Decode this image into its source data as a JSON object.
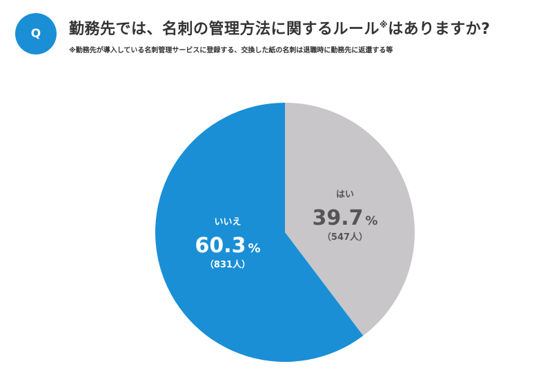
{
  "header": {
    "badge": "Q",
    "title": "勤務先では、名刺の管理方法に関するルール",
    "title_mark": "※",
    "title_suffix": "はありますか?",
    "note": "※勤務先が導入している名刺管理サービスに登録する、交換した紙の名刺は退職時に勤務先に返還する等"
  },
  "colors": {
    "accent": "#1a8fd6",
    "no": "#1a8fd6",
    "yes": "#c8c6c9",
    "label_on_blue": "#ffffff",
    "label_on_gray": "#555555"
  },
  "chart_data": {
    "type": "pie",
    "start": "12 o'clock",
    "direction": "clockwise",
    "slices": [
      {
        "label": "はい",
        "value": 39.7,
        "percent_text": "39.7",
        "unit": "%",
        "count_text": "（547人）",
        "color": "#c8c6c9"
      },
      {
        "label": "いいえ",
        "value": 60.3,
        "percent_text": "60.3",
        "unit": "%",
        "count_text": "（831人）",
        "color": "#1a8fd6"
      }
    ]
  }
}
